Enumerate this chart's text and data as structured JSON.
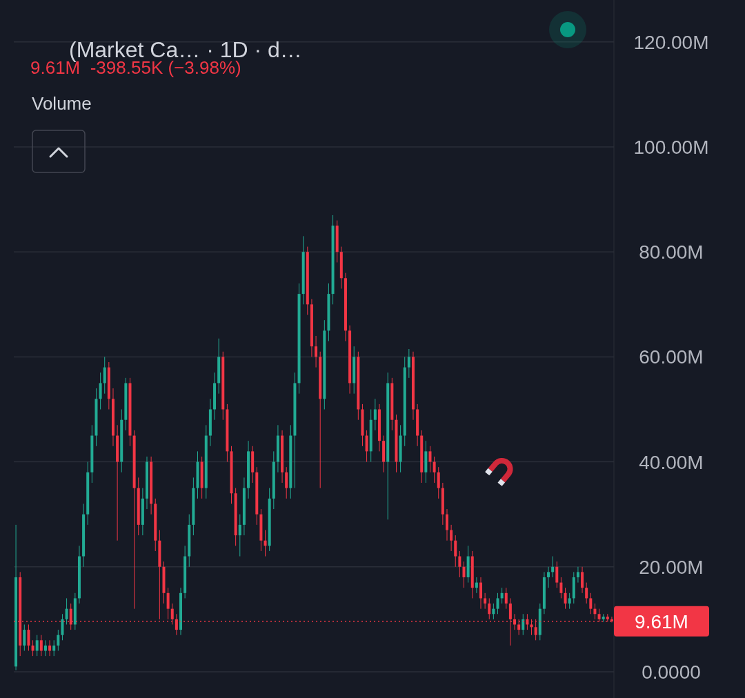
{
  "chart_data": {
    "type": "candlestick",
    "title": "(Market Ca…  · 1D · d…",
    "subtitle": "9.61M  -398.55K (−3.98%)",
    "annotations": [
      "Volume"
    ],
    "colors": [
      "#22ab94",
      "#f23645",
      "#22ab94",
      "#f23645",
      "#f23645",
      "#22ab94",
      "#f23645",
      "#22ab94",
      "#f23645",
      "#22ab94",
      "#22ab94",
      "#22ab94",
      "#22ab94",
      "#f23645",
      "#22ab94",
      "#22ab94",
      "#22ab94",
      "#22ab94",
      "#22ab94",
      "#22ab94",
      "#22ab94",
      "#22ab94",
      "#f23645",
      "#f23645",
      "#f23645",
      "#22ab94",
      "#22ab94",
      "#f23645",
      "#f23645",
      "#f23645",
      "#22ab94",
      "#22ab94",
      "#f23645",
      "#f23645",
      "#f23645",
      "#f23645",
      "#f23645",
      "#f23645",
      "#f23645",
      "#22ab94",
      "#22ab94",
      "#22ab94",
      "#22ab94",
      "#22ab94",
      "#f23645",
      "#22ab94",
      "#22ab94",
      "#22ab94",
      "#22ab94",
      "#f23645",
      "#f23645",
      "#f23645",
      "#f23645",
      "#22ab94",
      "#22ab94",
      "#22ab94",
      "#f23645",
      "#f23645",
      "#f23645",
      "#f23645",
      "#22ab94",
      "#22ab94",
      "#22ab94",
      "#f23645",
      "#f23645",
      "#22ab94",
      "#22ab94",
      "#22ab94",
      "#22ab94",
      "#f23645",
      "#f23645",
      "#f23645",
      "#f23645",
      "#22ab94",
      "#22ab94",
      "#22ab94",
      "#f23645",
      "#f23645",
      "#f23645",
      "#f23645",
      "#22ab94",
      "#f23645",
      "#f23645",
      "#f23645",
      "#22ab94",
      "#22ab94",
      "#f23645",
      "#f23645",
      "#22ab94",
      "#f23645",
      "#f23645",
      "#22ab94",
      "#22ab94",
      "#22ab94",
      "#f23645",
      "#f23645",
      "#f23645",
      "#22ab94",
      "#f23645",
      "#f23645",
      "#f23645",
      "#f23645",
      "#f23645",
      "#f23645",
      "#f23645",
      "#f23645",
      "#f23645",
      "#22ab94",
      "#f23645",
      "#22ab94",
      "#f23645",
      "#f23645",
      "#f23645",
      "#22ab94",
      "#22ab94",
      "#22ab94",
      "#f23645",
      "#f23645",
      "#f23645",
      "#f23645",
      "#22ab94",
      "#f23645",
      "#f23645",
      "#f23645",
      "#22ab94",
      "#22ab94",
      "#22ab94",
      "#22ab94",
      "#f23645",
      "#f23645",
      "#f23645",
      "#22ab94",
      "#22ab94",
      "#22ab94",
      "#f23645",
      "#f23645",
      "#f23645",
      "#f23645",
      "#f23645",
      "#22ab94",
      "#f23645",
      "#f23645"
    ],
    "categories": [
      null,
      null,
      null,
      null,
      null,
      null,
      null,
      null,
      null,
      null,
      null,
      null,
      null,
      null,
      null,
      null,
      null,
      null,
      null,
      null,
      null,
      null,
      null,
      null,
      null,
      null,
      null,
      null,
      null,
      null,
      null,
      null,
      null,
      null,
      null,
      null,
      null,
      null,
      null,
      null,
      null,
      null,
      null,
      null,
      null,
      null,
      null,
      null,
      null,
      null,
      null,
      null,
      null,
      null,
      null,
      null,
      null,
      null,
      null,
      null,
      null,
      null,
      null,
      null,
      null,
      null,
      null,
      null,
      null,
      null,
      null,
      null,
      null,
      null,
      null,
      null,
      null,
      null,
      null,
      null,
      null,
      null,
      null,
      null,
      null,
      null,
      null,
      null,
      null,
      null,
      null,
      null,
      null,
      null,
      null,
      null,
      null,
      null,
      null,
      null,
      null,
      null,
      null,
      null,
      null,
      null,
      null,
      null,
      null,
      null,
      null,
      null,
      null,
      null,
      null,
      null,
      null,
      null,
      null,
      null,
      null,
      null,
      null,
      null,
      null,
      null,
      null,
      null,
      null,
      null,
      null,
      null,
      null,
      null,
      null,
      null,
      null,
      null,
      null,
      null,
      null,
      null
    ],
    "ohlc": [
      [
        1,
        28,
        0.3,
        18
      ],
      [
        18,
        19,
        3,
        5
      ],
      [
        5,
        9,
        4,
        8
      ],
      [
        8,
        9,
        4,
        5
      ],
      [
        5,
        6,
        3,
        4
      ],
      [
        4,
        7,
        3,
        6
      ],
      [
        6,
        7,
        3,
        4
      ],
      [
        4,
        6,
        3,
        5
      ],
      [
        5,
        6,
        3,
        4
      ],
      [
        4,
        6,
        3,
        5
      ],
      [
        5,
        8,
        4,
        7
      ],
      [
        7,
        11,
        6,
        10
      ],
      [
        10,
        14,
        9,
        12
      ],
      [
        12,
        13,
        8,
        9
      ],
      [
        9,
        15,
        8,
        14
      ],
      [
        14,
        24,
        13,
        22
      ],
      [
        22,
        32,
        20,
        30
      ],
      [
        30,
        40,
        28,
        38
      ],
      [
        38,
        47,
        36,
        45
      ],
      [
        45,
        54,
        43,
        52
      ],
      [
        52,
        57,
        50,
        55
      ],
      [
        55,
        60,
        53,
        58
      ],
      [
        58,
        59,
        50,
        52
      ],
      [
        52,
        54,
        43,
        45
      ],
      [
        45,
        47,
        25,
        40
      ],
      [
        40,
        50,
        38,
        48
      ],
      [
        48,
        56,
        46,
        55
      ],
      [
        55,
        56,
        43,
        45
      ],
      [
        45,
        46,
        12,
        35
      ],
      [
        35,
        37,
        26,
        28
      ],
      [
        28,
        35,
        26,
        33
      ],
      [
        33,
        41,
        31,
        40
      ],
      [
        40,
        41,
        30,
        32
      ],
      [
        32,
        33,
        23,
        25
      ],
      [
        25,
        27,
        10,
        20
      ],
      [
        20,
        21,
        13,
        15
      ],
      [
        15,
        16,
        10,
        12
      ],
      [
        12,
        13,
        9,
        10
      ],
      [
        10,
        11,
        7,
        8
      ],
      [
        8,
        16,
        7,
        15
      ],
      [
        15,
        24,
        14,
        22
      ],
      [
        22,
        30,
        20,
        28
      ],
      [
        28,
        37,
        26,
        35
      ],
      [
        35,
        42,
        33,
        40
      ],
      [
        40,
        41,
        33,
        35
      ],
      [
        35,
        47,
        33,
        45
      ],
      [
        45,
        52,
        43,
        50
      ],
      [
        50,
        57,
        48,
        55
      ],
      [
        55,
        63.5,
        53,
        60
      ],
      [
        60,
        61,
        48,
        50
      ],
      [
        50,
        51,
        40,
        42
      ],
      [
        42,
        43,
        32,
        34
      ],
      [
        34,
        35,
        24,
        26
      ],
      [
        26,
        30,
        22,
        28
      ],
      [
        28,
        37,
        26,
        35
      ],
      [
        35,
        44,
        33,
        42
      ],
      [
        42,
        43,
        36,
        38
      ],
      [
        38,
        39,
        28,
        30
      ],
      [
        30,
        31,
        23,
        25
      ],
      [
        25,
        27,
        22,
        24
      ],
      [
        24,
        35,
        23,
        33
      ],
      [
        33,
        42,
        31,
        40
      ],
      [
        40,
        47,
        38,
        45
      ],
      [
        45,
        46,
        36,
        38
      ],
      [
        38,
        39,
        33,
        35
      ],
      [
        35,
        47,
        33,
        45
      ],
      [
        45,
        57,
        35,
        55
      ],
      [
        55,
        74,
        53,
        72
      ],
      [
        72,
        83,
        70,
        80
      ],
      [
        80,
        81,
        68,
        70
      ],
      [
        70,
        71,
        60,
        62
      ],
      [
        62,
        64,
        58,
        60
      ],
      [
        60,
        61,
        35,
        52
      ],
      [
        52,
        67,
        50,
        65
      ],
      [
        65,
        74,
        63,
        72
      ],
      [
        72,
        87,
        70,
        85
      ],
      [
        85,
        86,
        78,
        80
      ],
      [
        80,
        81,
        73,
        75
      ],
      [
        75,
        76,
        63,
        65
      ],
      [
        65,
        66,
        53,
        55
      ],
      [
        55,
        62,
        53,
        60
      ],
      [
        60,
        61,
        48,
        50
      ],
      [
        50,
        51,
        43,
        45
      ],
      [
        45,
        46,
        40,
        42
      ],
      [
        42,
        50,
        40,
        48
      ],
      [
        48,
        52,
        46,
        50
      ],
      [
        50,
        51,
        42,
        44
      ],
      [
        44,
        45,
        38,
        40
      ],
      [
        40,
        57,
        29,
        55
      ],
      [
        55,
        56,
        46,
        48
      ],
      [
        48,
        49,
        38,
        40
      ],
      [
        40,
        47,
        38,
        45
      ],
      [
        45,
        60,
        43,
        58
      ],
      [
        58,
        61.5,
        56,
        60
      ],
      [
        60,
        61,
        48,
        50
      ],
      [
        50,
        51,
        43,
        45
      ],
      [
        45,
        46,
        36,
        38
      ],
      [
        38,
        44,
        36,
        42
      ],
      [
        42,
        43,
        38,
        40
      ],
      [
        40,
        41,
        36,
        38
      ],
      [
        38,
        39,
        33,
        35
      ],
      [
        35,
        36,
        28,
        30
      ],
      [
        30,
        31,
        25,
        27
      ],
      [
        27,
        28,
        23,
        25
      ],
      [
        25,
        26,
        20,
        22
      ],
      [
        22,
        23,
        18,
        20
      ],
      [
        20,
        21,
        16,
        18
      ],
      [
        18,
        24,
        17,
        22
      ],
      [
        22,
        23,
        14,
        16
      ],
      [
        16,
        18,
        15,
        17
      ],
      [
        17,
        18,
        12,
        14
      ],
      [
        14,
        15,
        12,
        13
      ],
      [
        13,
        14,
        10,
        11
      ],
      [
        11,
        13,
        10,
        12
      ],
      [
        12,
        15,
        11,
        14
      ],
      [
        14,
        16,
        13,
        15
      ],
      [
        15,
        16,
        12,
        13
      ],
      [
        13,
        14,
        5,
        10
      ],
      [
        10,
        11,
        8,
        9
      ],
      [
        9,
        10,
        7,
        8
      ],
      [
        8,
        11,
        7,
        10
      ],
      [
        10,
        11,
        8,
        9
      ],
      [
        9,
        10,
        7,
        8.5
      ],
      [
        8.5,
        10,
        6,
        7
      ],
      [
        7,
        13,
        6,
        12
      ],
      [
        12,
        19,
        11,
        18
      ],
      [
        18,
        20,
        16,
        19
      ],
      [
        19,
        22,
        18,
        20
      ],
      [
        20,
        21,
        16,
        17
      ],
      [
        17,
        18,
        14,
        15
      ],
      [
        15,
        16,
        12,
        13
      ],
      [
        13,
        15,
        12,
        14
      ],
      [
        14,
        19,
        13,
        18
      ],
      [
        18,
        20,
        17,
        19
      ],
      [
        19,
        20,
        15,
        16
      ],
      [
        16,
        17,
        13,
        14
      ],
      [
        14,
        15,
        11,
        12
      ],
      [
        12,
        13,
        10,
        11
      ],
      [
        11,
        12,
        9.5,
        10
      ],
      [
        10,
        11,
        9.5,
        10.5
      ],
      [
        10.5,
        11,
        9.5,
        10
      ],
      [
        10,
        10.5,
        9.4,
        9.61
      ]
    ],
    "ylim": [
      -5,
      128
    ],
    "yticks": [
      {
        "value": 0,
        "label": "0.0000"
      },
      {
        "value": 20,
        "label": "20.00M"
      },
      {
        "value": 40,
        "label": "40.00M"
      },
      {
        "value": 60,
        "label": "60.00M"
      },
      {
        "value": 80,
        "label": "80.00M"
      },
      {
        "value": 100,
        "label": "100.00M"
      },
      {
        "value": 120,
        "label": "120.00M"
      }
    ],
    "tick_labels": "y",
    "grid": "y",
    "ref_lines": [
      {
        "axis": "y",
        "value": 9.61,
        "label": "9.61M",
        "color": "#f23645",
        "line_style": "dotted"
      }
    ]
  }
}
